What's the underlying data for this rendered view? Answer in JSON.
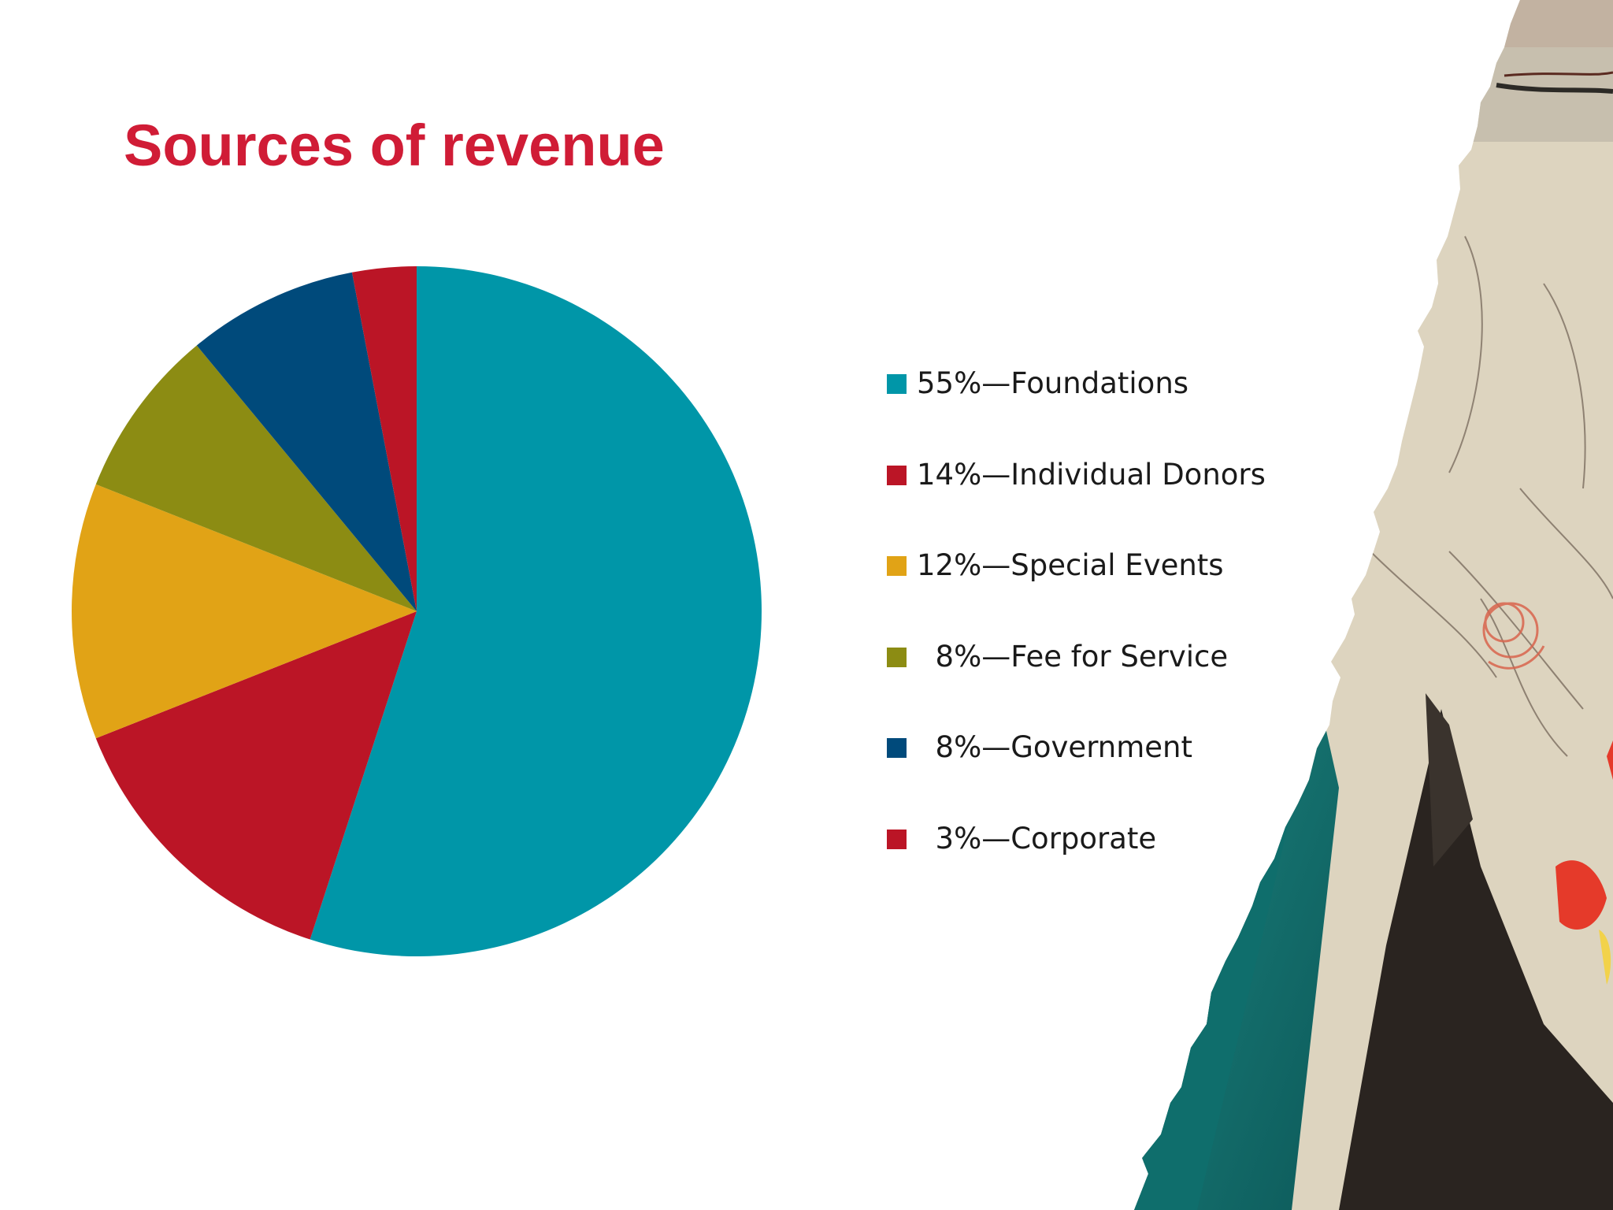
{
  "slide": {
    "title": "Sources of revenue",
    "title_color": "#d01c36",
    "background": "#ffffff"
  },
  "chart_data": {
    "type": "pie",
    "title": "Sources of revenue",
    "categories": [
      "Foundations",
      "Individual Donors",
      "Special Events",
      "Fee for Service",
      "Government",
      "Corporate"
    ],
    "values": [
      55,
      14,
      12,
      8,
      8,
      3
    ],
    "unit": "%",
    "colors": [
      "#0096a8",
      "#bb1526",
      "#e1a316",
      "#8c8c13",
      "#004a7b",
      "#bb1526"
    ],
    "start": "12 o'clock",
    "direction": "clockwise",
    "legend_position": "right",
    "legend": [
      {
        "label": "55%—Foundations",
        "color": "#0096a8"
      },
      {
        "label": "14%—Individual Donors",
        "color": "#bb1526"
      },
      {
        "label": "12%—Special Events",
        "color": "#e1a316"
      },
      {
        "label": "  8%—Fee for Service",
        "color": "#8c8c13"
      },
      {
        "label": "  8%—Government",
        "color": "#004a7b"
      },
      {
        "label": "  3%—Corporate",
        "color": "#bb1526"
      }
    ]
  },
  "decoration": {
    "artwork": "abstract-painting-brushstroke",
    "colors": [
      "#ddd4bf",
      "#1e8c86",
      "#2a2420",
      "#e53a2a",
      "#efe0b0"
    ]
  }
}
